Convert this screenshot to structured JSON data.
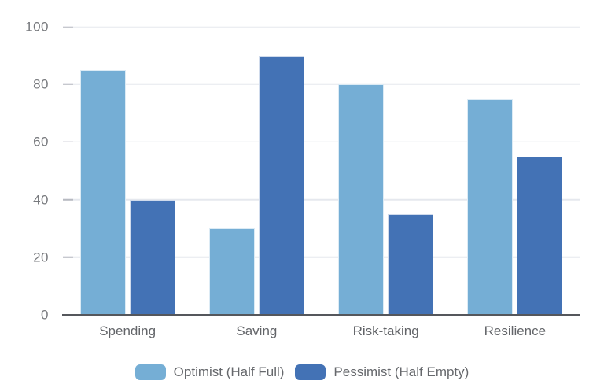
{
  "chart_data": {
    "type": "bar",
    "title": "",
    "categories": [
      "Spending",
      "Saving",
      "Risk-taking",
      "Resilience"
    ],
    "series": [
      {
        "name": "Optimist (Half Full)",
        "color": "#75AED5",
        "values": [
          85,
          30,
          80,
          75
        ]
      },
      {
        "name": "Pessimist (Half Empty)",
        "color": "#4372B5",
        "values": [
          40,
          90,
          35,
          55
        ]
      }
    ],
    "ylim": [
      0,
      100
    ],
    "yticks": [
      0,
      20,
      40,
      60,
      80,
      100
    ],
    "xlabel": "",
    "ylabel": "",
    "grid": true,
    "legend_position": "bottom"
  },
  "colors": {
    "background": "#FFFFFF",
    "gridline": "#E5E8EE",
    "tick_mark": "#B7BAC1",
    "axis_line": "#55575C",
    "tick_label_text": "#77797D",
    "category_text": "#636569",
    "legend_text": "#66686C",
    "bar_edge": "rgba(255,255,255,0.75)"
  }
}
